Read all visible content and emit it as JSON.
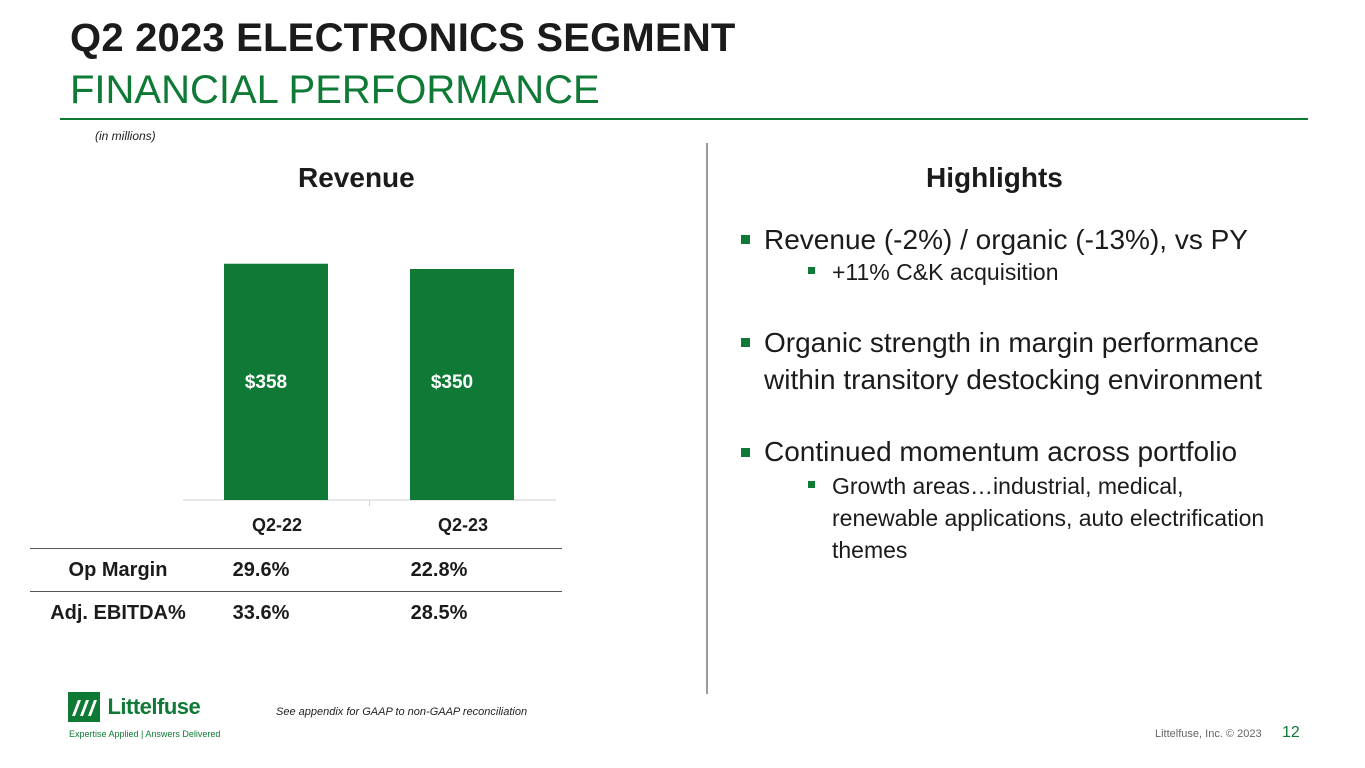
{
  "header": {
    "title": "Q2 2023 ELECTRONICS SEGMENT",
    "subtitle": "FINANCIAL PERFORMANCE",
    "units_note": "(in millions)"
  },
  "revenue_section": {
    "title": "Revenue"
  },
  "chart_data": {
    "type": "bar",
    "title": "Revenue",
    "categories": [
      "Q2-22",
      "Q2-23"
    ],
    "values": [
      358,
      350
    ],
    "data_labels": [
      "$358",
      "$350"
    ],
    "xlabel": "",
    "ylabel": "",
    "ylim": [
      0,
      400
    ],
    "grid": false,
    "bar_color": "#0e7a35",
    "label_color": "#ffffff"
  },
  "metrics_table": {
    "rows": [
      {
        "label": "Op Margin",
        "values": [
          "29.6%",
          "22.8%"
        ]
      },
      {
        "label": "Adj. EBITDA%",
        "values": [
          "33.6%",
          "28.5%"
        ]
      }
    ]
  },
  "highlights": {
    "title": "Highlights",
    "items": [
      {
        "text": "Revenue (-2%) / organic (-13%), vs PY",
        "subitems": [
          "+11% C&K acquisition"
        ]
      },
      {
        "text": "Organic strength in margin performance within transitory destocking environment",
        "subitems": []
      },
      {
        "text": "Continued momentum across portfolio",
        "subitems": [
          "Growth areas…industrial, medical, renewable applications, auto electrification themes"
        ]
      }
    ]
  },
  "footer": {
    "footnote": "See appendix for GAAP to non-GAAP reconciliation",
    "copyright": "Littelfuse, Inc. © 2023",
    "page_number": "12",
    "logo_name": "Littelfuse",
    "tagline": "Expertise Applied | Answers Delivered"
  },
  "colors": {
    "brand_green": "#0e7a35",
    "text": "#1b1b1b"
  }
}
